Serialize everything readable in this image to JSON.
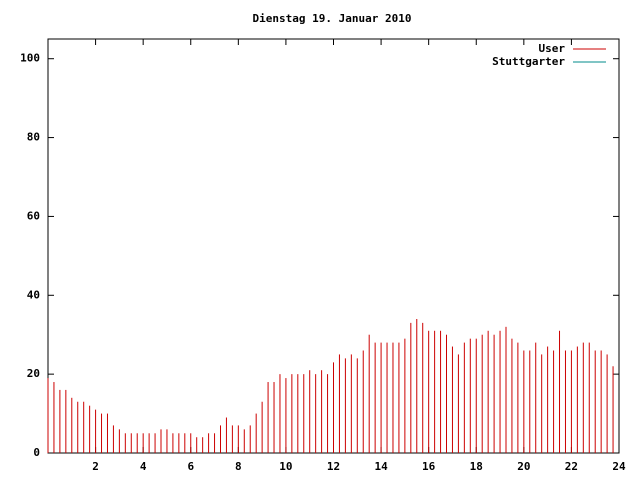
{
  "chart_data": {
    "type": "impulse",
    "title": "Dienstag 19. Januar 2010",
    "x": [
      0,
      0.25,
      0.5,
      0.75,
      1,
      1.25,
      1.5,
      1.75,
      2,
      2.25,
      2.5,
      2.75,
      3,
      3.25,
      3.5,
      3.75,
      4,
      4.25,
      4.5,
      4.75,
      5,
      5.25,
      5.5,
      5.75,
      6,
      6.25,
      6.5,
      6.75,
      7,
      7.25,
      7.5,
      7.75,
      8,
      8.25,
      8.5,
      8.75,
      9,
      9.25,
      9.5,
      9.75,
      10,
      10.25,
      10.5,
      10.75,
      11,
      11.25,
      11.5,
      11.75,
      12,
      12.25,
      12.5,
      12.75,
      13,
      13.25,
      13.5,
      13.75,
      14,
      14.25,
      14.5,
      14.75,
      15,
      15.25,
      15.5,
      15.75,
      16,
      16.25,
      16.5,
      16.75,
      17,
      17.25,
      17.5,
      17.75,
      18,
      18.25,
      18.5,
      18.75,
      19,
      19.25,
      19.5,
      19.75,
      20,
      20.25,
      20.5,
      20.75,
      21,
      21.25,
      21.5,
      21.75,
      22,
      22.25,
      22.5,
      22.75,
      23,
      23.25,
      23.5,
      23.75
    ],
    "series": [
      {
        "name": "User",
        "color": "#cc0000",
        "values": [
          19,
          18,
          16,
          16,
          14,
          13,
          13,
          12,
          11,
          10,
          10,
          7,
          6,
          5,
          5,
          5,
          5,
          5,
          5,
          6,
          6,
          5,
          5,
          5,
          5,
          4,
          4,
          5,
          5,
          7,
          9,
          7,
          7,
          6,
          7,
          10,
          13,
          18,
          18,
          20,
          19,
          20,
          20,
          20,
          21,
          20,
          21,
          20,
          23,
          25,
          24,
          25,
          24,
          26,
          30,
          28,
          28,
          28,
          28,
          28,
          29,
          33,
          34,
          33,
          31,
          31,
          31,
          30,
          27,
          25,
          28,
          29,
          29,
          30,
          31,
          30,
          31,
          32,
          29,
          28,
          26,
          26,
          28,
          25,
          27,
          26,
          31,
          26,
          26,
          27,
          28,
          28,
          26,
          26,
          25,
          22
        ]
      },
      {
        "name": "Stuttgarter",
        "color": "#008b8b",
        "values": [
          null,
          null,
          null,
          null,
          null,
          null,
          null,
          null,
          null,
          null,
          null,
          null,
          null,
          null,
          null,
          null,
          null,
          null,
          null,
          null,
          null,
          null,
          null,
          null,
          null,
          null,
          null,
          null,
          null,
          null,
          null,
          null,
          null,
          null,
          null,
          null,
          null,
          null,
          null,
          null,
          null,
          null,
          null,
          null,
          null,
          null,
          null,
          null,
          null,
          null,
          null,
          null,
          null,
          null,
          null,
          null,
          null,
          null,
          null,
          null,
          null,
          null,
          null,
          null,
          null,
          null,
          null,
          null,
          null,
          null,
          null,
          null,
          null,
          null,
          null,
          null,
          null,
          null,
          null,
          null,
          null,
          null,
          null,
          null,
          null,
          null,
          null,
          null,
          null,
          null,
          null,
          null,
          null,
          null,
          null,
          null
        ]
      }
    ],
    "xlim": [
      0,
      24
    ],
    "xticks": [
      2,
      4,
      6,
      8,
      10,
      12,
      14,
      16,
      18,
      20,
      22,
      24
    ],
    "ylim": [
      0,
      105
    ],
    "yticks": [
      0,
      20,
      40,
      60,
      80,
      100
    ]
  }
}
